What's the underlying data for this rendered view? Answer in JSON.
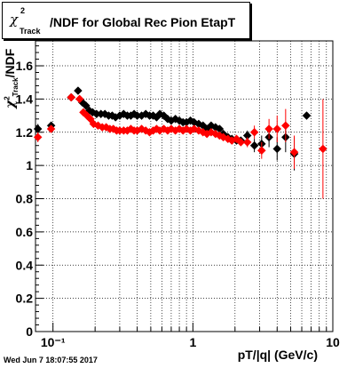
{
  "title": {
    "symbol": "χ",
    "superscript": "2",
    "subscript": "Track",
    "rest": "/NDF for Global Rec Pion EtapT"
  },
  "ylabel": {
    "symbol": "χ",
    "superscript": "2",
    "subscript": "Track",
    "rest": "/NDF"
  },
  "xlabel": "pT/|q| (GeV/c)",
  "timestamp": "Wed Jun  7 18:07:55 2017",
  "colors": {
    "black_series": "#000000",
    "red_series": "#ff0000",
    "grid": "#000000"
  },
  "chart_data": {
    "type": "scatter",
    "title": "χ²Track/NDF for Global Rec Pion EtapT",
    "xlabel": "pT/|q| (GeV/c)",
    "ylabel": "χ²Track/NDF",
    "x_scale": "log",
    "xlim": [
      0.075,
      10
    ],
    "ylim": [
      0,
      1.75
    ],
    "grid": true,
    "x_ticks": [
      {
        "value": 0.1,
        "label": "10⁻¹"
      },
      {
        "value": 1,
        "label": "1"
      },
      {
        "value": 10,
        "label": "10"
      }
    ],
    "y_ticks": [
      {
        "value": 0,
        "label": "0"
      },
      {
        "value": 0.2,
        "label": "0.2"
      },
      {
        "value": 0.4,
        "label": "0.4"
      },
      {
        "value": 0.6,
        "label": "0.6"
      },
      {
        "value": 0.8,
        "label": "0.8"
      },
      {
        "value": 1.0,
        "label": "1"
      },
      {
        "value": 1.2,
        "label": "1.2"
      },
      {
        "value": 1.4,
        "label": "1.4"
      },
      {
        "value": 1.6,
        "label": "1.6"
      }
    ],
    "series": [
      {
        "color": "#000000",
        "points": [
          {
            "x": 0.078,
            "y": 1.22,
            "err": 0.03
          },
          {
            "x": 0.097,
            "y": 1.24,
            "err": 0.02
          },
          {
            "x": 0.135,
            "y": 1.41,
            "err": 0.01
          },
          {
            "x": 0.151,
            "y": 1.45,
            "err": 0.01
          },
          {
            "x": 0.162,
            "y": 1.38,
            "err": 0.01
          },
          {
            "x": 0.172,
            "y": 1.36,
            "err": 0.01
          },
          {
            "x": 0.182,
            "y": 1.33,
            "err": 0.01
          },
          {
            "x": 0.192,
            "y": 1.32,
            "err": 0.01
          },
          {
            "x": 0.205,
            "y": 1.31,
            "err": 0.01
          },
          {
            "x": 0.22,
            "y": 1.31,
            "err": 0.01
          },
          {
            "x": 0.235,
            "y": 1.31,
            "err": 0.01
          },
          {
            "x": 0.25,
            "y": 1.3,
            "err": 0.01
          },
          {
            "x": 0.265,
            "y": 1.3,
            "err": 0.01
          },
          {
            "x": 0.28,
            "y": 1.29,
            "err": 0.01
          },
          {
            "x": 0.3,
            "y": 1.3,
            "err": 0.01
          },
          {
            "x": 0.32,
            "y": 1.31,
            "err": 0.01
          },
          {
            "x": 0.34,
            "y": 1.3,
            "err": 0.01
          },
          {
            "x": 0.36,
            "y": 1.3,
            "err": 0.01
          },
          {
            "x": 0.38,
            "y": 1.31,
            "err": 0.01
          },
          {
            "x": 0.4,
            "y": 1.3,
            "err": 0.01
          },
          {
            "x": 0.43,
            "y": 1.3,
            "err": 0.01
          },
          {
            "x": 0.46,
            "y": 1.31,
            "err": 0.01
          },
          {
            "x": 0.49,
            "y": 1.3,
            "err": 0.01
          },
          {
            "x": 0.52,
            "y": 1.3,
            "err": 0.01
          },
          {
            "x": 0.55,
            "y": 1.29,
            "err": 0.01
          },
          {
            "x": 0.58,
            "y": 1.31,
            "err": 0.01
          },
          {
            "x": 0.62,
            "y": 1.3,
            "err": 0.01
          },
          {
            "x": 0.66,
            "y": 1.28,
            "err": 0.01
          },
          {
            "x": 0.7,
            "y": 1.27,
            "err": 0.01
          },
          {
            "x": 0.75,
            "y": 1.28,
            "err": 0.01
          },
          {
            "x": 0.8,
            "y": 1.27,
            "err": 0.01
          },
          {
            "x": 0.85,
            "y": 1.26,
            "err": 0.01
          },
          {
            "x": 0.9,
            "y": 1.26,
            "err": 0.01
          },
          {
            "x": 0.96,
            "y": 1.27,
            "err": 0.01
          },
          {
            "x": 1.02,
            "y": 1.26,
            "err": 0.01
          },
          {
            "x": 1.1,
            "y": 1.25,
            "err": 0.01
          },
          {
            "x": 1.18,
            "y": 1.24,
            "err": 0.01
          },
          {
            "x": 1.26,
            "y": 1.22,
            "err": 0.01
          },
          {
            "x": 1.35,
            "y": 1.24,
            "err": 0.01
          },
          {
            "x": 1.45,
            "y": 1.23,
            "err": 0.01
          },
          {
            "x": 1.55,
            "y": 1.22,
            "err": 0.015
          },
          {
            "x": 1.65,
            "y": 1.19,
            "err": 0.015
          },
          {
            "x": 1.78,
            "y": 1.17,
            "err": 0.02
          },
          {
            "x": 1.9,
            "y": 1.16,
            "err": 0.02
          },
          {
            "x": 2.05,
            "y": 1.15,
            "err": 0.02
          },
          {
            "x": 2.2,
            "y": 1.15,
            "err": 0.02
          },
          {
            "x": 2.45,
            "y": 1.18,
            "err": 0.03
          },
          {
            "x": 2.75,
            "y": 1.12,
            "err": 0.04
          },
          {
            "x": 3.1,
            "y": 1.13,
            "err": 0.05
          },
          {
            "x": 3.5,
            "y": 1.17,
            "err": 0.06
          },
          {
            "x": 4.0,
            "y": 1.1,
            "err": 0.07
          },
          {
            "x": 4.6,
            "y": 1.17,
            "err": 0.09
          },
          {
            "x": 5.3,
            "y": 1.07,
            "err": 0.1
          },
          {
            "x": 6.5,
            "y": 1.3,
            "err": 0.02
          }
        ]
      },
      {
        "color": "#ff0000",
        "points": [
          {
            "x": 0.078,
            "y": 1.17,
            "err": 0.03
          },
          {
            "x": 0.097,
            "y": 1.22,
            "err": 0.02
          },
          {
            "x": 0.135,
            "y": 1.41,
            "err": 0.01
          },
          {
            "x": 0.155,
            "y": 1.4,
            "err": 0.01
          },
          {
            "x": 0.165,
            "y": 1.32,
            "err": 0.01
          },
          {
            "x": 0.175,
            "y": 1.3,
            "err": 0.01
          },
          {
            "x": 0.185,
            "y": 1.28,
            "err": 0.01
          },
          {
            "x": 0.195,
            "y": 1.25,
            "err": 0.01
          },
          {
            "x": 0.21,
            "y": 1.24,
            "err": 0.01
          },
          {
            "x": 0.225,
            "y": 1.23,
            "err": 0.01
          },
          {
            "x": 0.24,
            "y": 1.23,
            "err": 0.01
          },
          {
            "x": 0.255,
            "y": 1.22,
            "err": 0.01
          },
          {
            "x": 0.27,
            "y": 1.22,
            "err": 0.01
          },
          {
            "x": 0.285,
            "y": 1.21,
            "err": 0.01
          },
          {
            "x": 0.3,
            "y": 1.21,
            "err": 0.01
          },
          {
            "x": 0.32,
            "y": 1.21,
            "err": 0.01
          },
          {
            "x": 0.34,
            "y": 1.21,
            "err": 0.01
          },
          {
            "x": 0.36,
            "y": 1.22,
            "err": 0.01
          },
          {
            "x": 0.38,
            "y": 1.21,
            "err": 0.01
          },
          {
            "x": 0.4,
            "y": 1.21,
            "err": 0.01
          },
          {
            "x": 0.43,
            "y": 1.22,
            "err": 0.01
          },
          {
            "x": 0.46,
            "y": 1.21,
            "err": 0.01
          },
          {
            "x": 0.49,
            "y": 1.2,
            "err": 0.01
          },
          {
            "x": 0.52,
            "y": 1.21,
            "err": 0.01
          },
          {
            "x": 0.55,
            "y": 1.22,
            "err": 0.01
          },
          {
            "x": 0.58,
            "y": 1.21,
            "err": 0.01
          },
          {
            "x": 0.62,
            "y": 1.22,
            "err": 0.01
          },
          {
            "x": 0.66,
            "y": 1.21,
            "err": 0.01
          },
          {
            "x": 0.7,
            "y": 1.22,
            "err": 0.01
          },
          {
            "x": 0.75,
            "y": 1.21,
            "err": 0.01
          },
          {
            "x": 0.8,
            "y": 1.22,
            "err": 0.01
          },
          {
            "x": 0.85,
            "y": 1.21,
            "err": 0.01
          },
          {
            "x": 0.9,
            "y": 1.22,
            "err": 0.01
          },
          {
            "x": 0.96,
            "y": 1.21,
            "err": 0.01
          },
          {
            "x": 1.02,
            "y": 1.22,
            "err": 0.01
          },
          {
            "x": 1.1,
            "y": 1.21,
            "err": 0.01
          },
          {
            "x": 1.18,
            "y": 1.2,
            "err": 0.01
          },
          {
            "x": 1.26,
            "y": 1.19,
            "err": 0.01
          },
          {
            "x": 1.35,
            "y": 1.2,
            "err": 0.01
          },
          {
            "x": 1.45,
            "y": 1.19,
            "err": 0.015
          },
          {
            "x": 1.55,
            "y": 1.18,
            "err": 0.015
          },
          {
            "x": 1.65,
            "y": 1.17,
            "err": 0.015
          },
          {
            "x": 1.78,
            "y": 1.16,
            "err": 0.02
          },
          {
            "x": 1.9,
            "y": 1.15,
            "err": 0.02
          },
          {
            "x": 2.05,
            "y": 1.16,
            "err": 0.02
          },
          {
            "x": 2.2,
            "y": 1.14,
            "err": 0.02
          },
          {
            "x": 2.45,
            "y": 1.14,
            "err": 0.03
          },
          {
            "x": 2.75,
            "y": 1.2,
            "err": 0.04
          },
          {
            "x": 3.1,
            "y": 1.09,
            "err": 0.05
          },
          {
            "x": 3.5,
            "y": 1.22,
            "err": 0.06
          },
          {
            "x": 4.0,
            "y": 1.22,
            "err": 0.08
          },
          {
            "x": 4.6,
            "y": 1.24,
            "err": 0.1
          },
          {
            "x": 5.3,
            "y": 1.08,
            "err": 0.1
          },
          {
            "x": 8.5,
            "y": 1.1,
            "err": 0.3
          }
        ]
      }
    ]
  }
}
